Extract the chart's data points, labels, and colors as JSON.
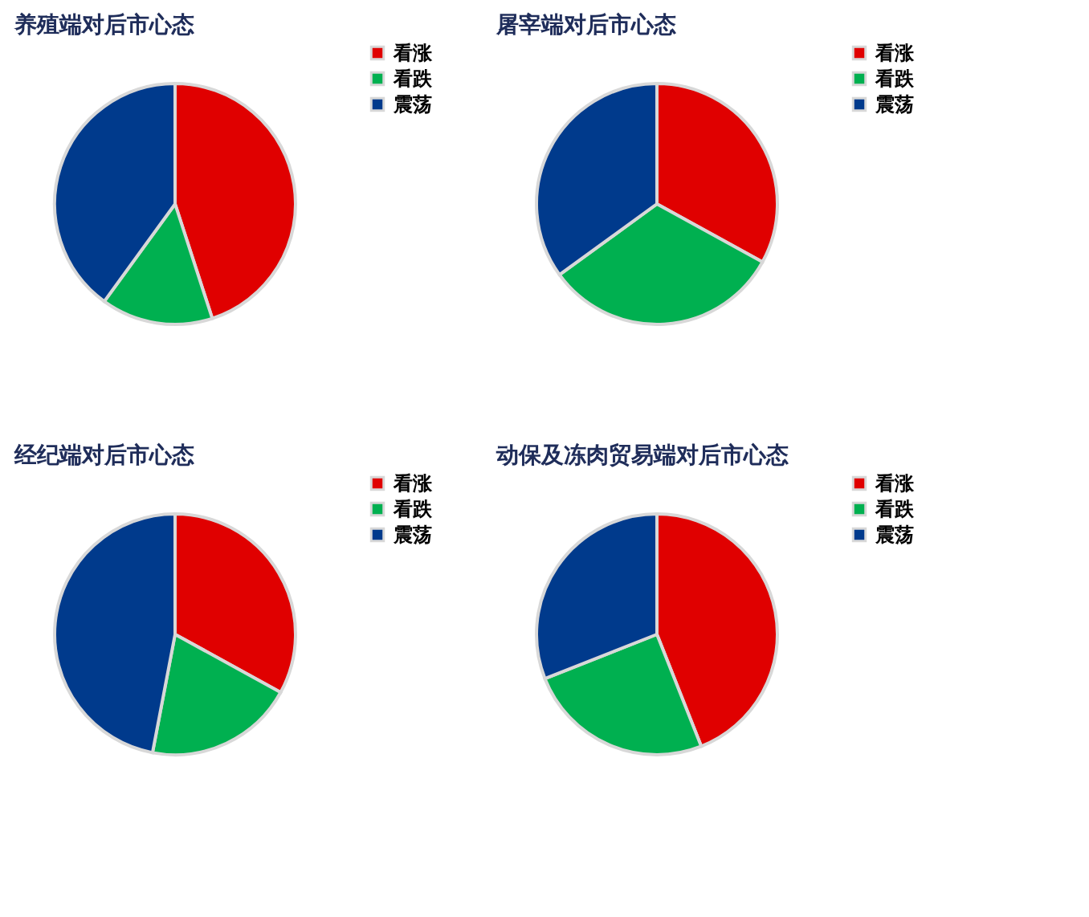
{
  "chart_data": [
    {
      "type": "pie",
      "title": "养殖端对后市心态",
      "categories": [
        "看涨",
        "看跌",
        "震荡"
      ],
      "values": [
        45,
        15,
        40
      ],
      "colors": [
        "#e00000",
        "#00b050",
        "#003a8c"
      ],
      "legend": "right"
    },
    {
      "type": "pie",
      "title": "屠宰端对后市心态",
      "categories": [
        "看涨",
        "看跌",
        "震荡"
      ],
      "values": [
        33,
        32,
        35
      ],
      "colors": [
        "#e00000",
        "#00b050",
        "#003a8c"
      ],
      "legend": "right"
    },
    {
      "type": "pie",
      "title": "经纪端对后市心态",
      "categories": [
        "看涨",
        "看跌",
        "震荡"
      ],
      "values": [
        33,
        20,
        47
      ],
      "colors": [
        "#e00000",
        "#00b050",
        "#003a8c"
      ],
      "legend": "right"
    },
    {
      "type": "pie",
      "title": "动保及冻肉贸易端对后市心态",
      "categories": [
        "看涨",
        "看跌",
        "震荡"
      ],
      "values": [
        44,
        25,
        31
      ],
      "colors": [
        "#e00000",
        "#00b050",
        "#003a8c"
      ],
      "legend": "right"
    }
  ]
}
